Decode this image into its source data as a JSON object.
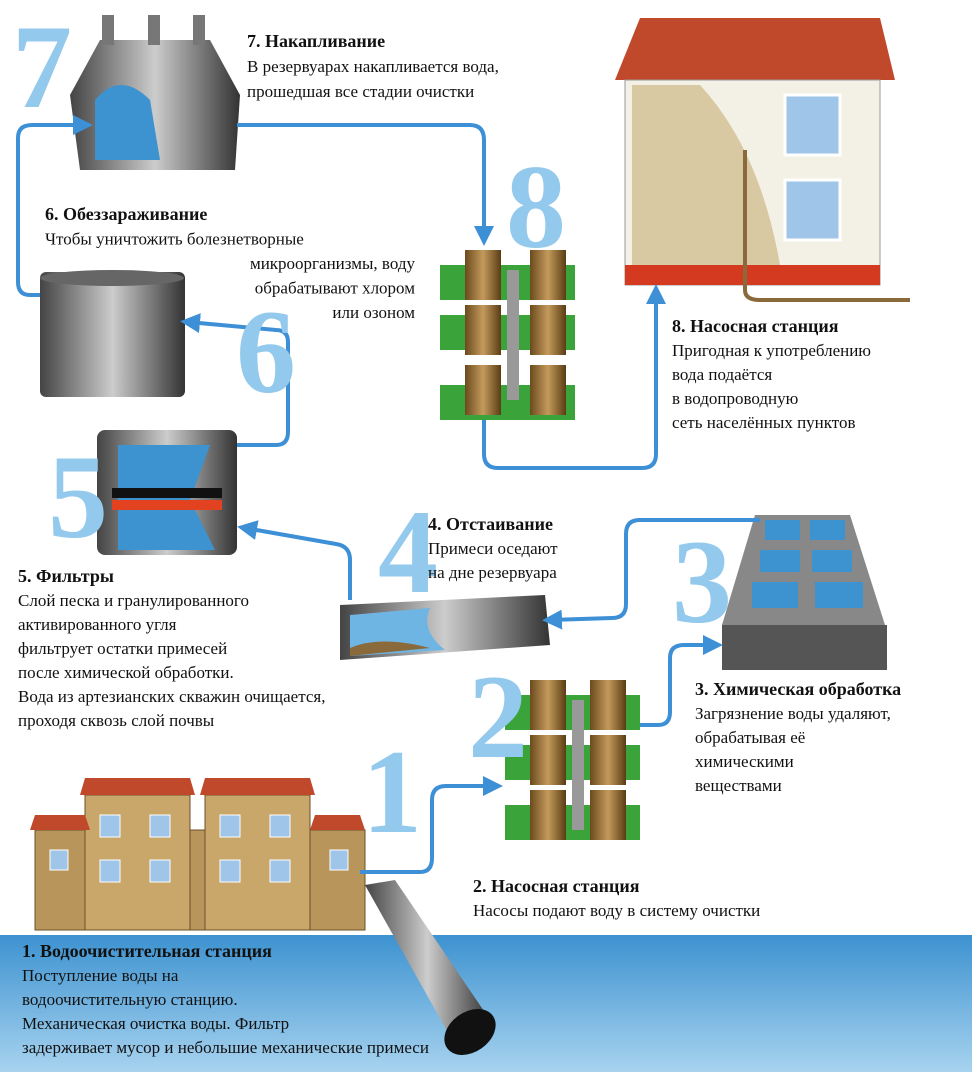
{
  "steps": [
    {
      "number": "1",
      "title": "1. Водоочистительная станция",
      "lines": [
        "Поступление воды на",
        "водоочистительную станцию.",
        "Механическая очистка воды. Фильтр",
        "задерживает мусор и небольшие механические примеси"
      ]
    },
    {
      "number": "2",
      "title": "2. Насосная станция",
      "lines": [
        "Насосы подают воду в систему очистки"
      ]
    },
    {
      "number": "3",
      "title": "3. Химическая обработка",
      "lines": [
        "Загрязнение воды удаляют,",
        "обрабатывая её",
        "химическими",
        "веществами"
      ]
    },
    {
      "number": "4",
      "title": "4. Отстаивание",
      "lines": [
        "Примеси оседают",
        "на дне резервуара"
      ]
    },
    {
      "number": "5",
      "title": "5. Фильтры",
      "lines": [
        "Слой песка и гранулированного",
        "активированного угля",
        "фильтрует остатки примесей",
        "после химической обработки.",
        "Вода из артезианских скважин очищается,",
        "проходя сквозь слой почвы"
      ]
    },
    {
      "number": "6",
      "title": "6. Обеззараживание",
      "lines": [
        "Чтобы уничтожить болезнетворные",
        "микроорганизмы, воду",
        "обрабатывают хлором",
        "или озоном"
      ]
    },
    {
      "number": "7",
      "title": "7. Накапливание",
      "lines": [
        "В резервуарах накапливается вода,",
        "прошедшая все стадии очистки"
      ]
    },
    {
      "number": "8",
      "title": "8. Насосная станция",
      "lines": [
        "Пригодная к употреблению",
        "вода подаётся",
        "в водопроводную",
        "сеть населённых пунктов"
      ]
    }
  ]
}
